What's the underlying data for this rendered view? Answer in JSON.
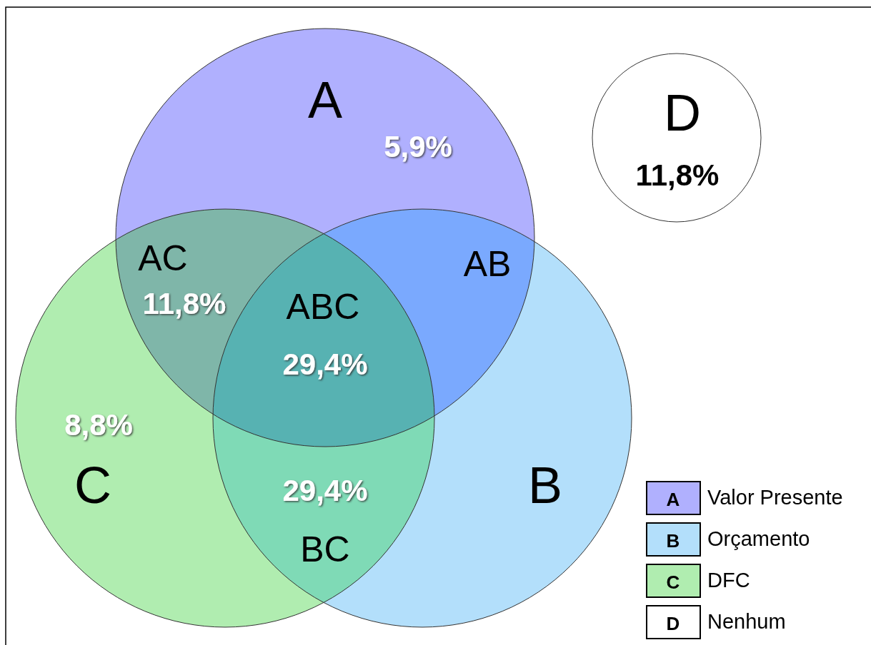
{
  "chart_data": {
    "type": "other",
    "categories": [
      "A",
      "B",
      "C",
      "D",
      "AB",
      "AC",
      "BC",
      "ABC"
    ],
    "values": [
      5.9,
      null,
      8.8,
      11.8,
      null,
      11.8,
      29.4,
      29.4
    ],
    "value_labels": [
      "5,9%",
      null,
      "8,8%",
      "11,8%",
      null,
      "11,8%",
      "29,4%",
      "29,4%"
    ],
    "colors": [
      "#b0b0fe",
      "#b3dffb",
      "#b0edb0",
      "#ffffff",
      "#7aa9fe",
      "#7fb6a9",
      "#7fdab6",
      "#57b2b2"
    ],
    "annotations": [
      "Valor Presente",
      "Orçamento",
      "DFC",
      "Nenhum"
    ]
  }
}
